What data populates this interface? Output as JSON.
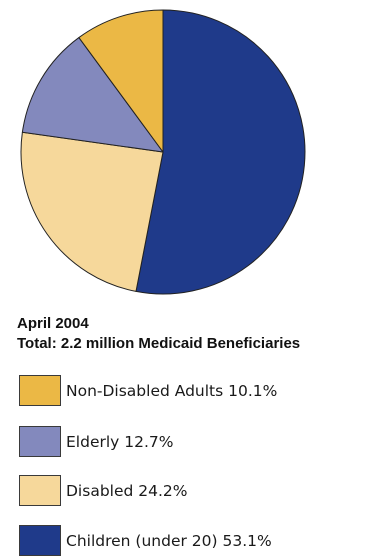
{
  "chart_data": {
    "type": "pie",
    "title": "",
    "subtitle_lines": [
      "April 2004",
      "Total: 2.2 million Medicaid Beneficiaries"
    ],
    "slices": [
      {
        "label": "Children (under 20) 53.1%",
        "value": 53.1,
        "color": "#1f3a8a"
      },
      {
        "label": "Disabled 24.2%",
        "value": 24.2,
        "color": "#f6d89b"
      },
      {
        "label": "Elderly 12.7%",
        "value": 12.7,
        "color": "#8389bd"
      },
      {
        "label": "Non-Disabled Adults 10.1%",
        "value": 10.1,
        "color": "#ebb845"
      }
    ],
    "legend": [
      {
        "label": "Non-Disabled Adults 10.1%",
        "color": "#ebb845"
      },
      {
        "label": "Elderly 12.7%",
        "color": "#8389bd"
      },
      {
        "label": "Disabled 24.2%",
        "color": "#f6d89b"
      },
      {
        "label": "Children (under 20) 53.1%",
        "color": "#1f3a8a"
      }
    ],
    "legend_position": "below",
    "start_angle": "top, clockwise",
    "outline_color": "#222222"
  }
}
